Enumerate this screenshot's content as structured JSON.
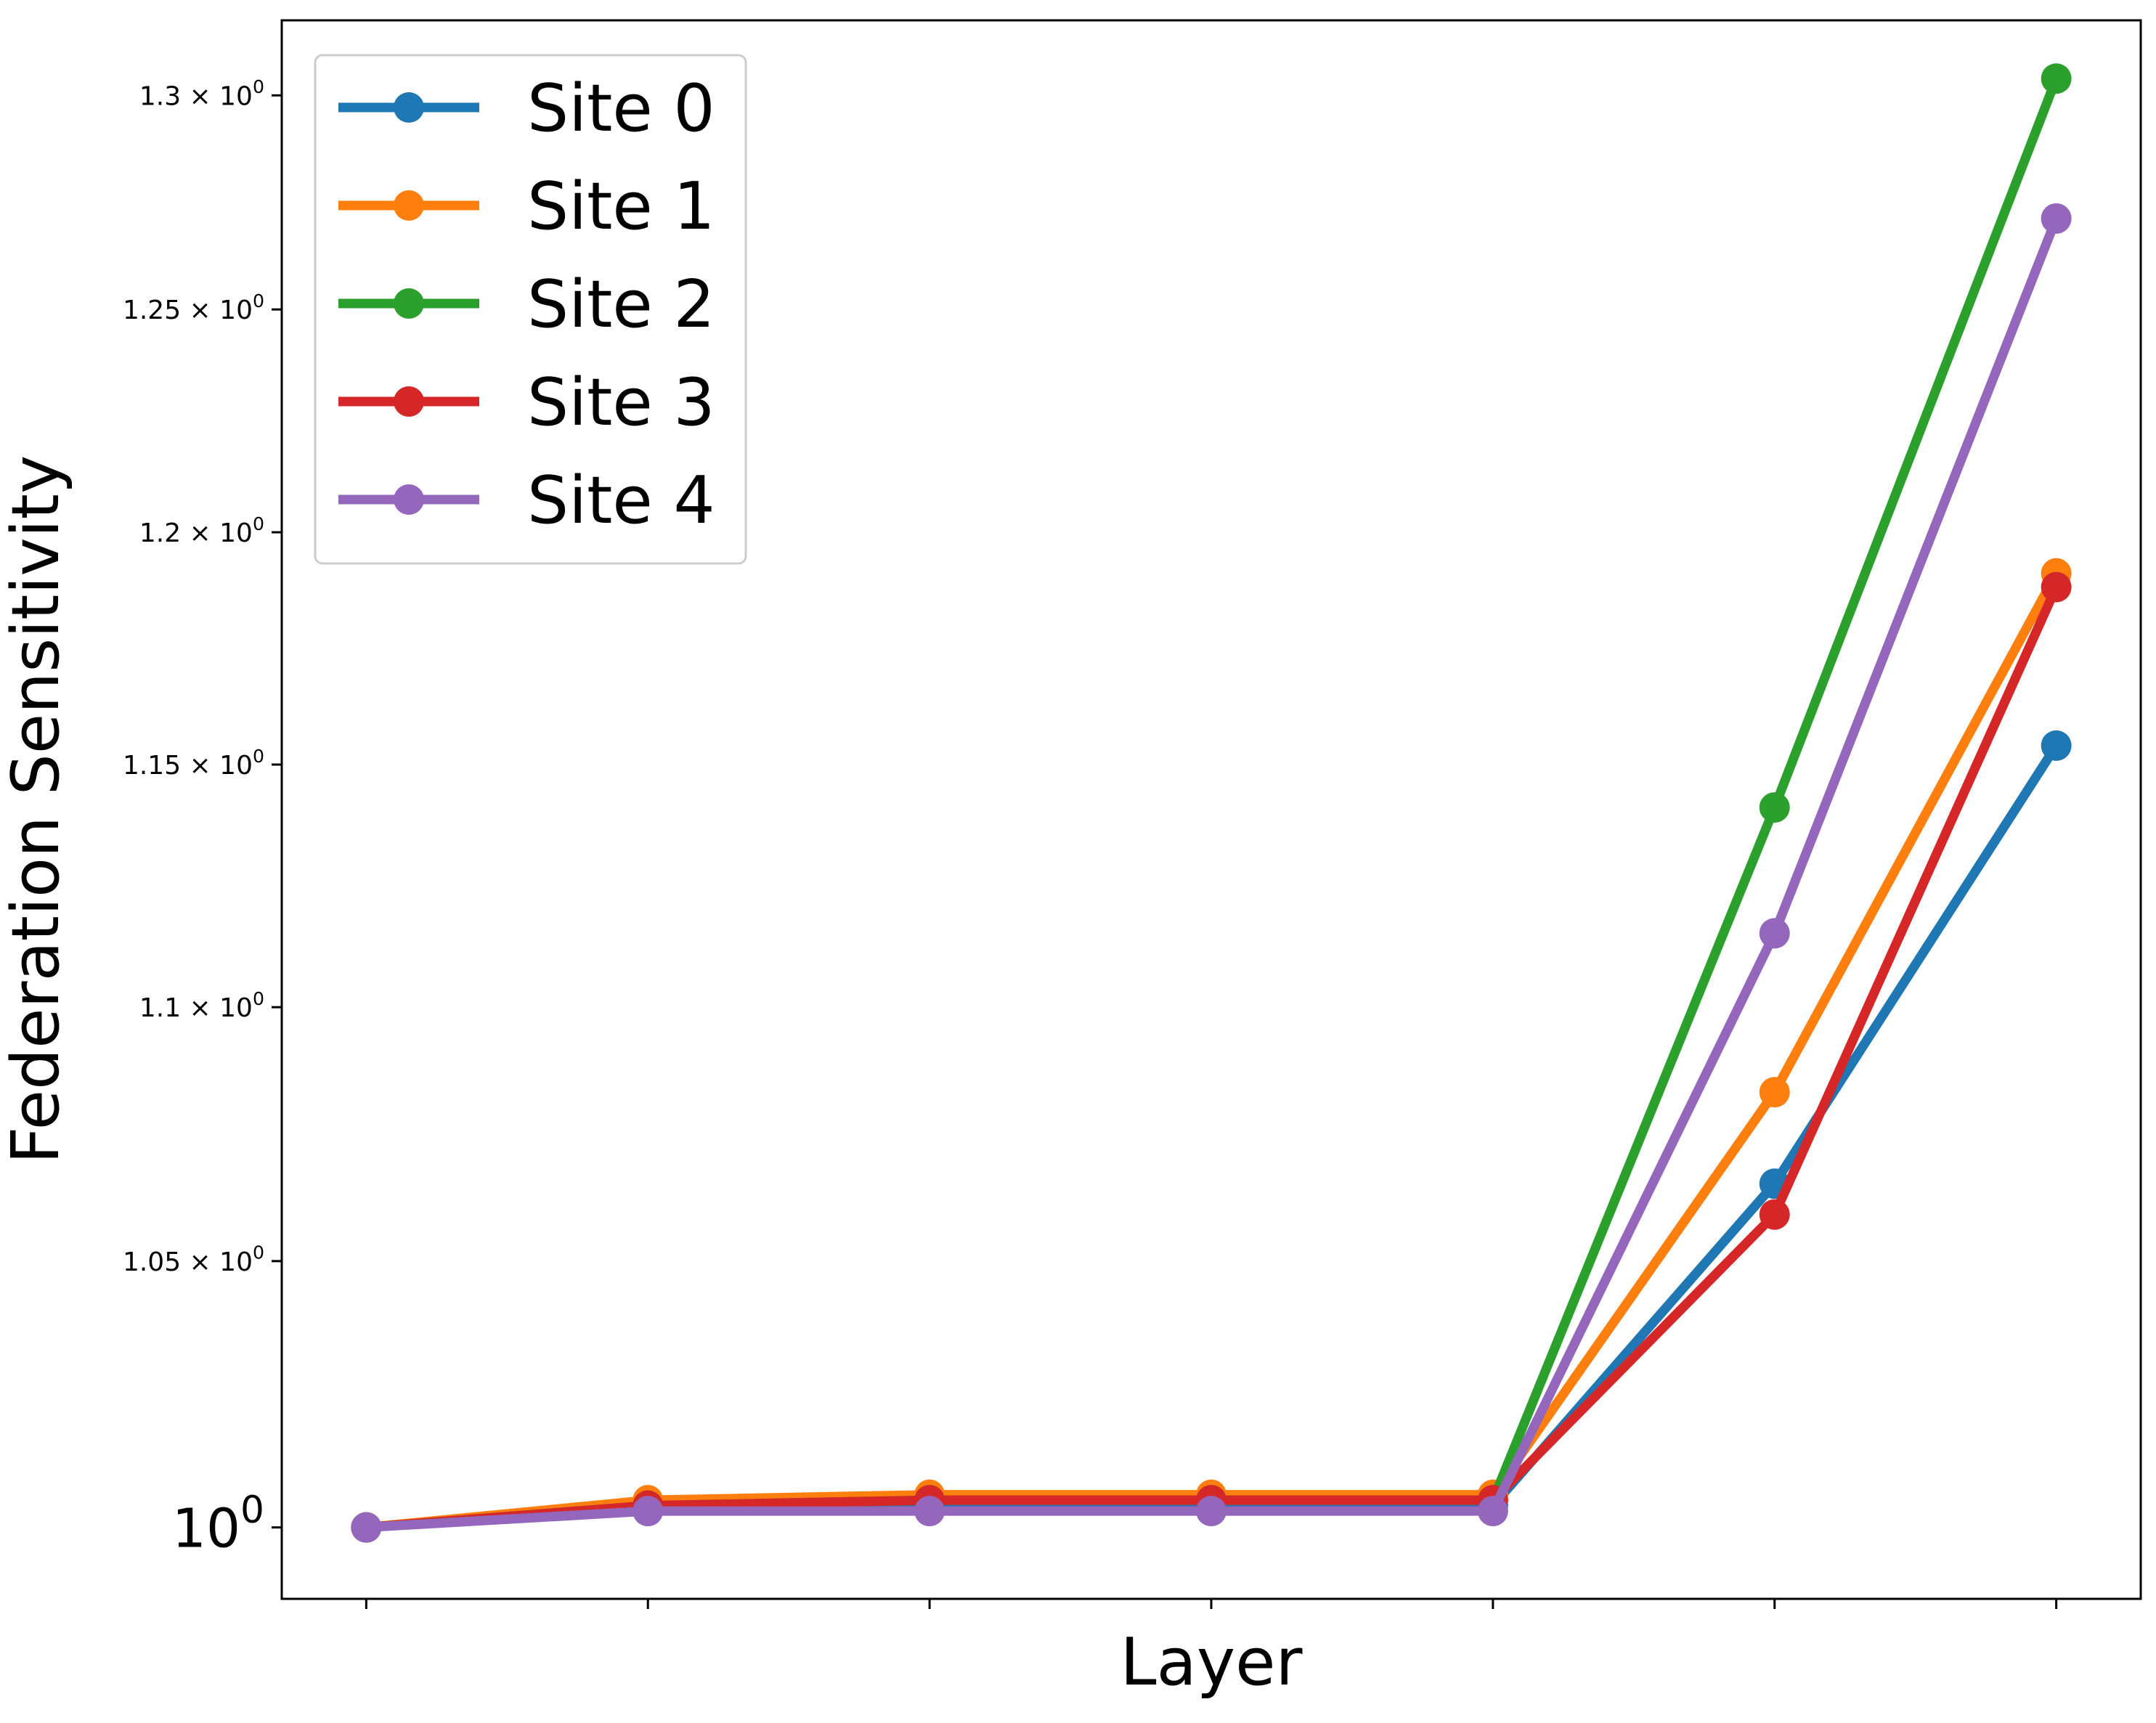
{
  "chart_data": {
    "type": "line",
    "title": "",
    "xlabel": "Layer",
    "ylabel": "Federation Sensitivity",
    "yscale": "log",
    "x": [
      0,
      1,
      2,
      3,
      4,
      5,
      6
    ],
    "xlim": [
      -0.3,
      6.3
    ],
    "ylim": [
      0.987,
      1.318
    ],
    "yticks": [
      {
        "value": 1.0,
        "mant": "10",
        "exp": "0",
        "big": true
      },
      {
        "value": 1.05,
        "mant": "1.05 × 10",
        "exp": "0",
        "big": false
      },
      {
        "value": 1.1,
        "mant": "1.1 × 10",
        "exp": "0",
        "big": false
      },
      {
        "value": 1.15,
        "mant": "1.15 × 10",
        "exp": "0",
        "big": false
      },
      {
        "value": 1.2,
        "mant": "1.2 × 10",
        "exp": "0",
        "big": false
      },
      {
        "value": 1.25,
        "mant": "1.25 × 10",
        "exp": "0",
        "big": false
      },
      {
        "value": 1.3,
        "mant": "1.3 × 10",
        "exp": "0",
        "big": false
      }
    ],
    "grid": false,
    "legend_position": "top-left",
    "series": [
      {
        "name": "Site 0",
        "color": "#1f77b4",
        "values": [
          1.0,
          1.004,
          1.004,
          1.004,
          1.004,
          1.065,
          1.154
        ]
      },
      {
        "name": "Site 1",
        "color": "#ff7f0e",
        "values": [
          1.0,
          1.005,
          1.006,
          1.006,
          1.006,
          1.083,
          1.191
        ]
      },
      {
        "name": "Site 2",
        "color": "#2ca02c",
        "values": [
          1.0,
          1.004,
          1.005,
          1.005,
          1.005,
          1.141,
          1.304
        ]
      },
      {
        "name": "Site 3",
        "color": "#d62728",
        "values": [
          1.0,
          1.004,
          1.005,
          1.005,
          1.005,
          1.059,
          1.188
        ]
      },
      {
        "name": "Site 4",
        "color": "#9467bd",
        "values": [
          1.0,
          1.003,
          1.003,
          1.003,
          1.003,
          1.115,
          1.271
        ]
      }
    ]
  }
}
